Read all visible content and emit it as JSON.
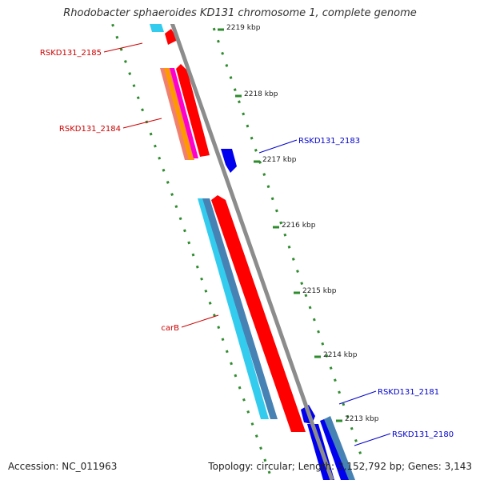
{
  "title": "Rhodobacter sphaeroides KD131 chromosome 1, complete genome",
  "footer": {
    "accession": "Accession: NC_011963",
    "topology": "Topology: circular; Length: 3,152,792 bp; Genes: 3,143"
  },
  "scale_labels": [
    {
      "text": "2219 kbp",
      "kbp": 2219
    },
    {
      "text": "2218 kbp",
      "kbp": 2218
    },
    {
      "text": "2217 kbp",
      "kbp": 2217
    },
    {
      "text": "2216 kbp",
      "kbp": 2216
    },
    {
      "text": "2215 kbp",
      "kbp": 2215
    },
    {
      "text": "2214 kbp",
      "kbp": 2214
    },
    {
      "text": "2213 kbp",
      "kbp": 2213
    }
  ],
  "gene_labels": [
    {
      "text": "RSKD131_2185",
      "strand": "reverse",
      "color": "#cc0000"
    },
    {
      "text": "RSKD131_2184",
      "strand": "reverse",
      "color": "#cc0000"
    },
    {
      "text": "RSKD131_2183",
      "strand": "forward",
      "color": "#0000cc"
    },
    {
      "text": "carB",
      "strand": "reverse",
      "color": "#cc0000"
    },
    {
      "text": "RSKD131_2181",
      "strand": "forward",
      "color": "#0000cc"
    },
    {
      "text": "RSKD131_2180",
      "strand": "forward",
      "color": "#0000cc"
    }
  ],
  "colors": {
    "backbone": "#8c8c8c",
    "tick": "#2e8b2e",
    "gene_red": "#ff0000",
    "gene_blue": "#0000ee",
    "gene_cyan": "#33ccee",
    "gene_steel": "#4682b4",
    "gene_salmon": "#f08070",
    "gene_orange": "#ff9900",
    "gene_magenta": "#ff00cc"
  }
}
